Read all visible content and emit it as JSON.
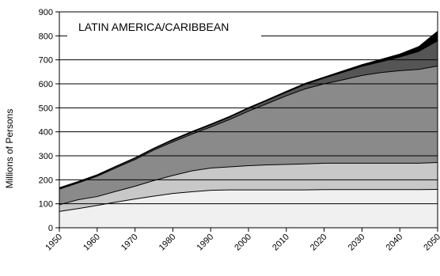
{
  "chart_data": {
    "type": "area",
    "stacked": true,
    "title": "LATIN AMERICA/CARIBBEAN",
    "xlabel": "",
    "ylabel": "Millions of Persons",
    "xlim": [
      1950,
      2050
    ],
    "ylim": [
      0,
      900
    ],
    "x_ticks": [
      1950,
      1960,
      1970,
      1980,
      1990,
      2000,
      2010,
      2020,
      2030,
      2040,
      2050
    ],
    "y_ticks": [
      0,
      100,
      200,
      300,
      400,
      500,
      600,
      700,
      800,
      900
    ],
    "grid": "horizontal",
    "legend": "none",
    "x": [
      1950,
      1955,
      1960,
      1965,
      1970,
      1975,
      1980,
      1985,
      1990,
      1995,
      2000,
      2005,
      2010,
      2015,
      2020,
      2025,
      2030,
      2035,
      2040,
      2045,
      2050
    ],
    "series": [
      {
        "values": [
          68,
          80,
          93,
          107,
          120,
          132,
          143,
          150,
          156,
          158,
          158,
          158,
          158,
          158,
          159,
          159,
          159,
          159,
          159,
          159,
          160
        ],
        "color": "#f0f0f0"
      },
      {
        "values": [
          28,
          37,
          37,
          45,
          53,
          65,
          75,
          87,
          93,
          96,
          101,
          104,
          106,
          108,
          110,
          110,
          110,
          110,
          110,
          110,
          112
        ],
        "color": "#c8c8c8"
      },
      {
        "values": [
          65,
          70,
          85,
          98,
          111,
          127,
          140,
          153,
          171,
          197,
          227,
          256,
          286,
          313,
          331,
          348,
          366,
          378,
          386,
          391,
          402
        ],
        "color": "#8a8a8a"
      },
      {
        "values": [
          4,
          4,
          4,
          5,
          6,
          6,
          7,
          8,
          9,
          10,
          12,
          13,
          15,
          19,
          24,
          31,
          38,
          45,
          57,
          75,
          105
        ],
        "color": "#555555"
      },
      {
        "values": [
          2,
          2,
          2,
          2,
          2,
          2,
          3,
          3,
          3,
          3,
          3,
          3,
          4,
          4,
          4,
          6,
          7,
          10,
          12,
          20,
          40
        ],
        "color": "#000000"
      }
    ]
  }
}
